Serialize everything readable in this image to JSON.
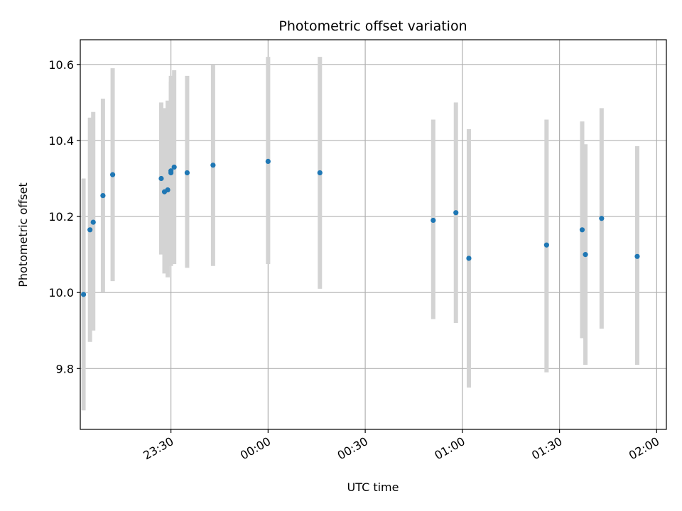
{
  "chart_data": {
    "type": "scatter",
    "title": "Photometric offset variation",
    "xlabel": "UTC time",
    "ylabel": "Photometric offset",
    "x_tick_labels": [
      "23:30",
      "00:00",
      "00:30",
      "01:00",
      "01:30",
      "02:00"
    ],
    "x_tick_times": [
      "23:30",
      "00:00",
      "00:30",
      "01:00",
      "01:30",
      "02:00"
    ],
    "y_tick_labels": [
      "9.8",
      "10.0",
      "10.2",
      "10.4",
      "10.6"
    ],
    "y_ticks": [
      9.8,
      10.0,
      10.2,
      10.4,
      10.6
    ],
    "xlim": [
      "23:02",
      "02:03"
    ],
    "ylim": [
      9.64,
      10.665
    ],
    "grid": true,
    "colors": {
      "point": "#1f77b4",
      "errorbar": "#d3d3d3",
      "grid": "#b0b0b0"
    },
    "points": [
      {
        "time": "23:03",
        "value": 9.995,
        "err_low": 9.69,
        "err_high": 10.3
      },
      {
        "time": "23:05",
        "value": 10.165,
        "err_low": 9.87,
        "err_high": 10.46
      },
      {
        "time": "23:06",
        "value": 10.185,
        "err_low": 9.9,
        "err_high": 10.475
      },
      {
        "time": "23:09",
        "value": 10.255,
        "err_low": 10.0,
        "err_high": 10.51
      },
      {
        "time": "23:12",
        "value": 10.31,
        "err_low": 10.03,
        "err_high": 10.59
      },
      {
        "time": "23:27",
        "value": 10.3,
        "err_low": 10.1,
        "err_high": 10.5
      },
      {
        "time": "23:28",
        "value": 10.265,
        "err_low": 10.05,
        "err_high": 10.485
      },
      {
        "time": "23:29",
        "value": 10.27,
        "err_low": 10.04,
        "err_high": 10.505
      },
      {
        "time": "23:30",
        "value": 10.32,
        "err_low": 10.07,
        "err_high": 10.57
      },
      {
        "time": "23:30",
        "value": 10.315,
        "err_low": 10.08,
        "err_high": 10.555
      },
      {
        "time": "23:31",
        "value": 10.33,
        "err_low": 10.075,
        "err_high": 10.585
      },
      {
        "time": "23:35",
        "value": 10.315,
        "err_low": 10.065,
        "err_high": 10.57
      },
      {
        "time": "23:43",
        "value": 10.335,
        "err_low": 10.07,
        "err_high": 10.6
      },
      {
        "time": "00:00",
        "value": 10.345,
        "err_low": 10.075,
        "err_high": 10.62
      },
      {
        "time": "00:16",
        "value": 10.315,
        "err_low": 10.01,
        "err_high": 10.62
      },
      {
        "time": "00:51",
        "value": 10.19,
        "err_low": 9.93,
        "err_high": 10.455
      },
      {
        "time": "00:58",
        "value": 10.21,
        "err_low": 9.92,
        "err_high": 10.5
      },
      {
        "time": "01:02",
        "value": 10.09,
        "err_low": 9.75,
        "err_high": 10.43
      },
      {
        "time": "01:26",
        "value": 10.125,
        "err_low": 9.79,
        "err_high": 10.455
      },
      {
        "time": "01:37",
        "value": 10.165,
        "err_low": 9.88,
        "err_high": 10.45
      },
      {
        "time": "01:38",
        "value": 10.1,
        "err_low": 9.81,
        "err_high": 10.39
      },
      {
        "time": "01:43",
        "value": 10.195,
        "err_low": 9.905,
        "err_high": 10.485
      },
      {
        "time": "01:54",
        "value": 10.095,
        "err_low": 9.81,
        "err_high": 10.385
      }
    ]
  }
}
